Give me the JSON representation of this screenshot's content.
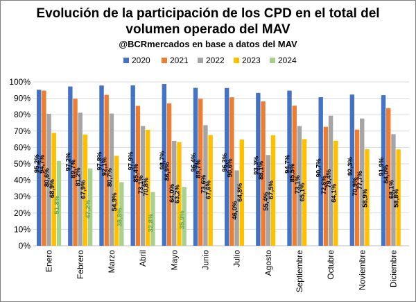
{
  "chart_data": {
    "type": "bar",
    "title": "Evolución de la participación de los CPD en el total del volumen operado del MAV",
    "title_lines": [
      "Evolución de la participación de los CPD en el total del",
      "volumen operado del MAV"
    ],
    "subtitle": "@BCRmercados en base a datos del MAV",
    "categories": [
      "Enero",
      "Febrero",
      "Marzo",
      "Abril",
      "Mayo",
      "Junio",
      "Julio",
      "Agosto",
      "Septiembre",
      "Octubre",
      "Noviembre",
      "Diciembre"
    ],
    "series": [
      {
        "name": "2020",
        "color": "#4472c4",
        "values": [
          95.2,
          97.2,
          97.8,
          97.9,
          98.7,
          96.4,
          96.3,
          93.3,
          94.7,
          90.7,
          92.3,
          91.9
        ]
      },
      {
        "name": "2021",
        "color": "#ed7d31",
        "values": [
          94.7,
          89.7,
          92.1,
          85.4,
          86.9,
          89.7,
          90.6,
          88.1,
          85.5,
          72.6,
          70.9,
          84.0
        ]
      },
      {
        "name": "2022",
        "color": "#a5a5a5",
        "values": [
          80.6,
          81.2,
          80.7,
          73.1,
          64.0,
          73.6,
          46.0,
          55.4,
          73.1,
          79.4,
          77.7,
          68.1
        ]
      },
      {
        "name": "2023",
        "color": "#ffc000",
        "values": [
          68.9,
          67.9,
          54.9,
          70.8,
          63.2,
          67.6,
          64.8,
          67.5,
          65.1,
          64.1,
          58.9,
          58.8
        ]
      },
      {
        "name": "2024",
        "color": "#a9d18e",
        "values": [
          51.8,
          47.2,
          38.8,
          32.8,
          35.9,
          null,
          null,
          null,
          null,
          null,
          null,
          null
        ]
      }
    ],
    "labels": [
      [
        "95,2%",
        "97,2%",
        "97,8%",
        "97,9%",
        "98,7%",
        "96,4%",
        "96,3%",
        "93,3%",
        "94,7%",
        "90,7%",
        "92,3%",
        "91,9%"
      ],
      [
        "94,7%",
        "89,7%",
        "92,1%",
        "85,4%",
        "86,9%",
        "89,7%",
        "90,6%",
        "88,1%",
        "85,5%",
        "72,6%",
        "70,9%",
        "84,0%"
      ],
      [
        "80,6%",
        "81,2%",
        "80,7%",
        "73,1%",
        "64,0%",
        "73,6%",
        "46,0%",
        "55,4%",
        "73,1%",
        "79,4%",
        "77,7%",
        "68,1%"
      ],
      [
        "68,9%",
        "67,9%",
        "54,9%",
        "70,8%",
        "63,2%",
        "67,6%",
        "64,8%",
        "67,5%",
        "65,1%",
        "64,1%",
        "58,9%",
        "58,8%"
      ],
      [
        "51,8%",
        "47,2%",
        "38,8%",
        "32,8%",
        "35,9%",
        null,
        null,
        null,
        null,
        null,
        null,
        null
      ]
    ],
    "label_colors": [
      "#000000",
      "#000000",
      "#000000",
      "#000000",
      "#6aa84f"
    ],
    "y_ticks": [
      "0%",
      "10%",
      "20%",
      "30%",
      "40%",
      "50%",
      "60%",
      "70%",
      "80%",
      "90%",
      "100%"
    ],
    "ylim": [
      0,
      100
    ],
    "xlabel": "",
    "ylabel": "",
    "grid": true,
    "legend_position": "top-center"
  }
}
